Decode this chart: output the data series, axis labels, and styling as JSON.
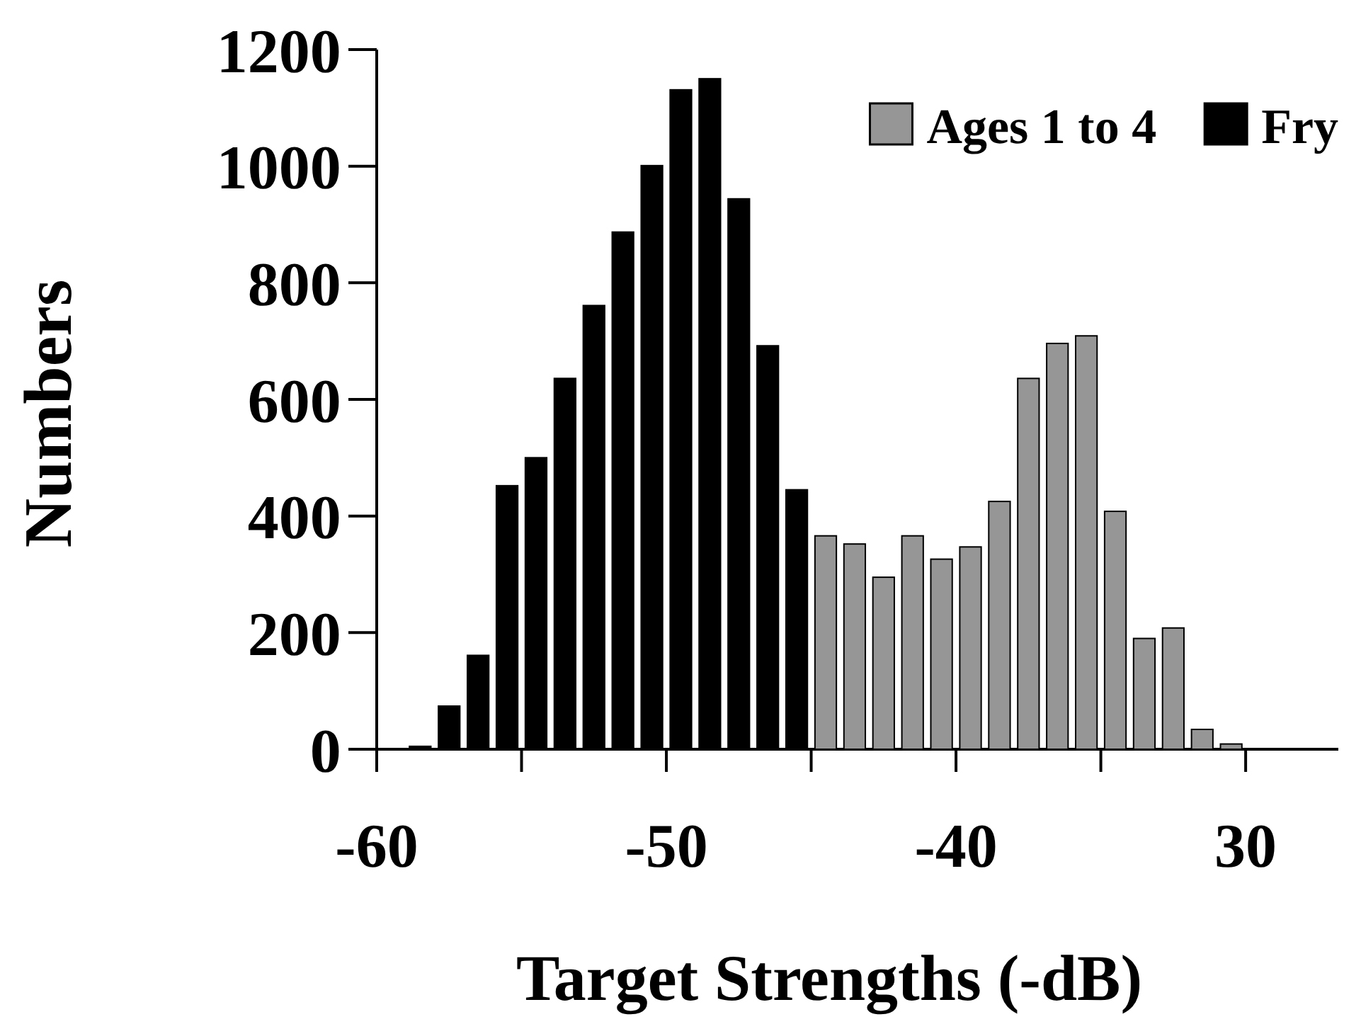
{
  "chart_data": {
    "type": "bar",
    "xlabel": "Target Strengths (-dB)",
    "ylabel": "Numbers",
    "xlim": [
      -60,
      -26.8
    ],
    "ylim": [
      0,
      1200
    ],
    "xticks": [
      -60,
      {
        "value": -55,
        "label": null
      },
      -50,
      {
        "value": -45,
        "label": null
      },
      -40,
      {
        "value": -35,
        "label": null
      },
      {
        "value": -30,
        "label": "30"
      }
    ],
    "yticks": [
      0,
      200,
      400,
      600,
      800,
      1000,
      1200
    ],
    "legend": "top right",
    "grid": false,
    "series": [
      {
        "name": "Ages 1 to 4",
        "color": "#969696",
        "x": [
          -44.5,
          -43.5,
          -42.5,
          -41.5,
          -40.5,
          -39.5,
          -38.5,
          -37.5,
          -36.5,
          -35.5,
          -34.5,
          -33.5,
          -32.5,
          -31.5,
          -30.5
        ],
        "values": [
          366,
          352,
          295,
          366,
          326,
          347,
          425,
          636,
          696,
          709,
          408,
          190,
          208,
          34,
          9
        ]
      },
      {
        "name": "Fry",
        "color": "#000000",
        "x": [
          -58.5,
          -57.5,
          -56.5,
          -55.5,
          -54.5,
          -53.5,
          -52.5,
          -51.5,
          -50.5,
          -49.5,
          -48.5,
          -47.5,
          -46.5,
          -45.5
        ],
        "values": [
          5,
          74,
          161,
          452,
          500,
          636,
          761,
          887,
          1001,
          1131,
          1150,
          944,
          692,
          445
        ]
      }
    ]
  }
}
